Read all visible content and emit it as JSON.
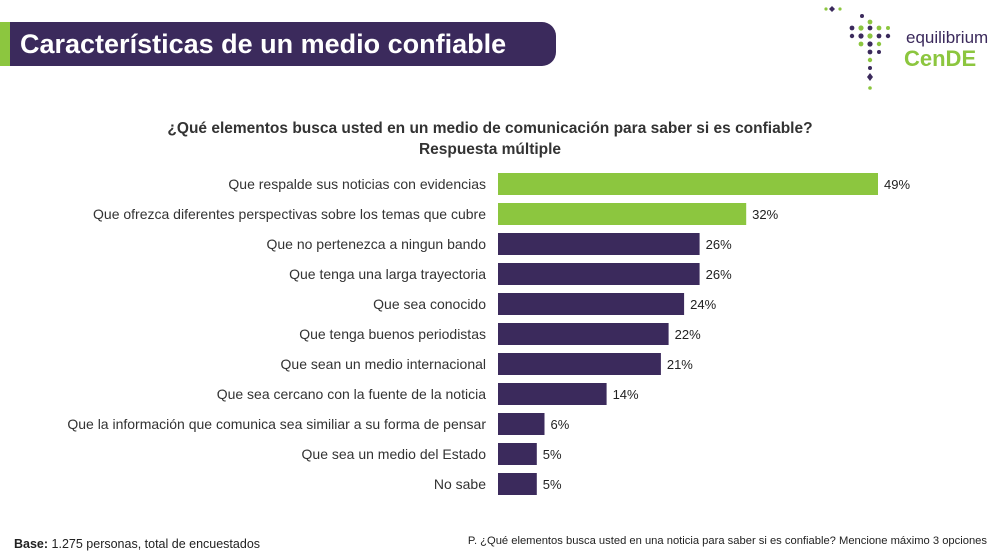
{
  "header": {
    "title": "Características de un medio confiable"
  },
  "logo": {
    "top_text": "equilibrium",
    "bottom_text": "CenDE"
  },
  "colors": {
    "purple": "#3b2a5c",
    "green": "#8cc63f"
  },
  "footer": {
    "base_label": "Base:",
    "base_text": "1.275 personas, total de encuestados",
    "question": "P.  ¿Qué elementos busca usted en una noticia para saber si es confiable? Mencione máximo 3 opciones"
  },
  "chart_data": {
    "type": "bar",
    "orientation": "horizontal",
    "title": "¿Qué elementos busca usted en un medio de comunicación para saber si es confiable?",
    "subtitle": "Respuesta múltiple",
    "categories": [
      "Que respalde sus noticias con evidencias",
      "Que ofrezca diferentes perspectivas sobre los temas que cubre",
      "Que no pertenezca a ningun bando",
      "Que tenga una larga trayectoria",
      "Que sea conocido",
      "Que tenga buenos periodistas",
      "Que sean un medio internacional",
      "Que sea cercano con la fuente de la noticia",
      "Que la información que comunica sea similiar a su forma de pensar",
      "Que sea un medio del Estado",
      "No sabe"
    ],
    "values": [
      49,
      32,
      26,
      26,
      24,
      22,
      21,
      14,
      6,
      5,
      5
    ],
    "value_labels": [
      "49%",
      "32%",
      "26%",
      "26%",
      "24%",
      "22%",
      "21%",
      "14%",
      "6%",
      "5%",
      "5%"
    ],
    "highlighted": [
      true,
      true,
      false,
      false,
      false,
      false,
      false,
      false,
      false,
      false,
      false
    ],
    "xlim": [
      0,
      49
    ],
    "grid": false,
    "legend": "none"
  }
}
